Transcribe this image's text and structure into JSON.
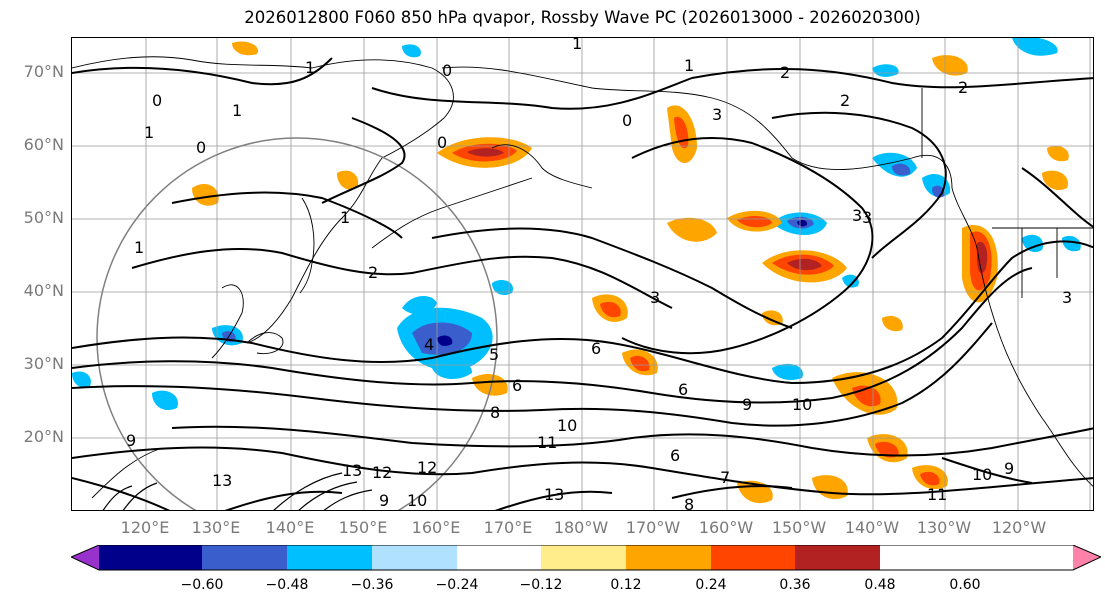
{
  "title": "2026012800 F060 850 hPa qvapor, Rossby Wave PC (2026013000 - 2026020300)",
  "lat_labels": [
    "70°N",
    "60°N",
    "50°N",
    "40°N",
    "30°N",
    "20°N"
  ],
  "lon_labels": [
    "120°E",
    "130°E",
    "140°E",
    "150°E",
    "160°E",
    "170°E",
    "180°W",
    "170°W",
    "160°W",
    "150°W",
    "140°W",
    "130°W",
    "120°W"
  ],
  "colorbar": {
    "ticks": [
      "−0.60",
      "−0.48",
      "−0.36",
      "−0.24",
      "−0.12",
      "0.12",
      "0.24",
      "0.36",
      "0.48",
      "0.60"
    ],
    "colors": [
      "#9932cc",
      "#00008b",
      "#3a5fcd",
      "#00bfff",
      "#b0e2ff",
      "#ffffff",
      "#ffec8b",
      "#ffa500",
      "#ff4500",
      "#b22222",
      "#ff82ab"
    ]
  },
  "contour_labels": [
    "1",
    "0",
    "1",
    "2",
    "2",
    "1",
    "0",
    "1",
    "1",
    "0",
    "1",
    "0",
    "3",
    "3",
    "2",
    "3",
    "3",
    "4",
    "5",
    "6",
    "6",
    "6",
    "8",
    "9",
    "10",
    "10",
    "11",
    "12",
    "12",
    "13",
    "13",
    "10",
    "9",
    "6",
    "7",
    "8",
    "11",
    "9",
    "13",
    "10",
    "9",
    "3",
    "0",
    "2",
    "1"
  ]
}
